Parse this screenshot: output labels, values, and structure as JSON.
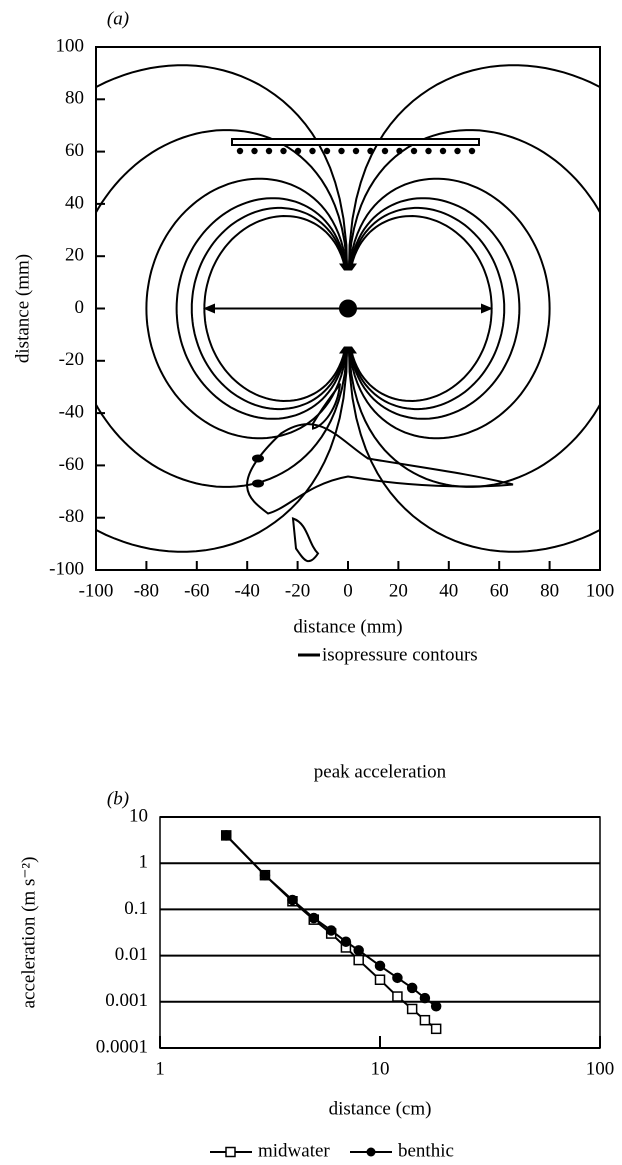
{
  "chart_data": [
    {
      "type": "contour",
      "panel_label": "(a)",
      "xlabel": "distance (mm)",
      "ylabel": "distance (mm)",
      "xlim": [
        -100,
        100
      ],
      "ylim": [
        -100,
        100
      ],
      "xticks": [
        -100,
        -80,
        -60,
        -40,
        -20,
        0,
        20,
        40,
        60,
        80,
        100
      ],
      "yticks": [
        -100,
        -80,
        -60,
        -40,
        -20,
        0,
        20,
        40,
        60,
        80,
        100
      ],
      "legend": "isopressure contours",
      "color": "#000000"
    },
    {
      "type": "line",
      "panel_label": "(b)",
      "title": "peak acceleration",
      "xlabel": "distance (cm)",
      "ylabel": "acceleration (m s⁻²)",
      "xscale": "log",
      "yscale": "log",
      "grid": true,
      "xlim": [
        1,
        100
      ],
      "ylim": [
        0.0001,
        10
      ],
      "xticks": [
        1,
        10,
        100
      ],
      "yticks": [
        0.0001,
        0.001,
        0.01,
        0.1,
        1,
        10
      ],
      "series": [
        {
          "name": "midwater",
          "marker": "square",
          "color": "#000000",
          "x": [
            2,
            3,
            4,
            5,
            6,
            7,
            8,
            10,
            12,
            14,
            16,
            18
          ],
          "values": [
            4,
            0.55,
            0.15,
            0.06,
            0.03,
            0.015,
            0.008,
            0.003,
            0.0013,
            0.0007,
            0.0004,
            0.00026
          ]
        },
        {
          "name": "benthic",
          "marker": "circle",
          "color": "#000000",
          "x": [
            2,
            3,
            4,
            5,
            6,
            7,
            8,
            10,
            12,
            14,
            16,
            18
          ],
          "values": [
            4,
            0.55,
            0.16,
            0.065,
            0.035,
            0.02,
            0.013,
            0.006,
            0.0033,
            0.002,
            0.0012,
            0.0008
          ]
        }
      ]
    }
  ]
}
